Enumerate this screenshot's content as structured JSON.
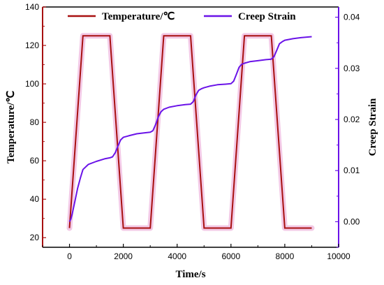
{
  "chart_data": {
    "type": "line",
    "title": "",
    "xlabel": "Time/s",
    "ylabel_left": "Temperature/℃",
    "ylabel_right": "Creep Strain",
    "xlim": [
      -1000,
      10000
    ],
    "ylim_left": [
      15,
      140
    ],
    "ylim_right": [
      -0.005,
      0.042
    ],
    "x_ticks": [
      0,
      2000,
      4000,
      6000,
      8000,
      10000
    ],
    "x_tick_labels": [
      "0",
      "2000",
      "4000",
      "6000",
      "8000",
      "10000"
    ],
    "y_left_ticks": [
      20,
      40,
      60,
      80,
      100,
      120,
      140
    ],
    "y_left_tick_labels": [
      "20",
      "40",
      "60",
      "80",
      "100",
      "120",
      "140"
    ],
    "y_right_ticks": [
      0.0,
      0.01,
      0.02,
      0.03,
      0.04
    ],
    "y_right_tick_labels": [
      "0.00",
      "0.01",
      "0.02",
      "0.03",
      "0.04"
    ],
    "legend_position": "top",
    "colors": {
      "temperature": "#a81010",
      "temperature_band": "#f3c9e6",
      "strain": "#6a13e8",
      "left_axis": "#a81010",
      "right_axis": "#6a13e8",
      "frame": "#000000"
    },
    "series": [
      {
        "name": "Temperature/℃",
        "axis": "left",
        "x": [
          0,
          500,
          1500,
          2000,
          3000,
          3500,
          4500,
          5000,
          6000,
          6500,
          7500,
          8000,
          9000
        ],
        "values": [
          25,
          125,
          125,
          25,
          25,
          125,
          125,
          25,
          25,
          125,
          125,
          25,
          25
        ]
      },
      {
        "name": "Creep Strain",
        "axis": "right",
        "x": [
          0,
          50,
          100,
          200,
          300,
          400,
          500,
          700,
          1000,
          1300,
          1500,
          1600,
          1700,
          1800,
          1900,
          2000,
          2200,
          2500,
          2800,
          3000,
          3100,
          3200,
          3300,
          3400,
          3500,
          3700,
          4000,
          4300,
          4500,
          4600,
          4700,
          4800,
          4900,
          5000,
          5200,
          5500,
          5800,
          6000,
          6100,
          6200,
          6300,
          6400,
          6500,
          6700,
          7000,
          7300,
          7500,
          7600,
          7700,
          7800,
          7900,
          8000,
          8300,
          8600,
          9000
        ],
        "values": [
          0.0,
          0.0005,
          0.0015,
          0.004,
          0.0065,
          0.0085,
          0.0102,
          0.0112,
          0.0118,
          0.0123,
          0.0125,
          0.0127,
          0.0135,
          0.0148,
          0.016,
          0.0165,
          0.0168,
          0.0172,
          0.0174,
          0.0175,
          0.0178,
          0.019,
          0.0205,
          0.0215,
          0.022,
          0.0224,
          0.0227,
          0.0229,
          0.023,
          0.0235,
          0.0248,
          0.0257,
          0.026,
          0.0262,
          0.0265,
          0.0268,
          0.0269,
          0.027,
          0.0275,
          0.0288,
          0.0302,
          0.0308,
          0.031,
          0.0313,
          0.0315,
          0.0317,
          0.0318,
          0.0323,
          0.0335,
          0.0348,
          0.0352,
          0.0355,
          0.0358,
          0.036,
          0.0362
        ]
      }
    ]
  }
}
